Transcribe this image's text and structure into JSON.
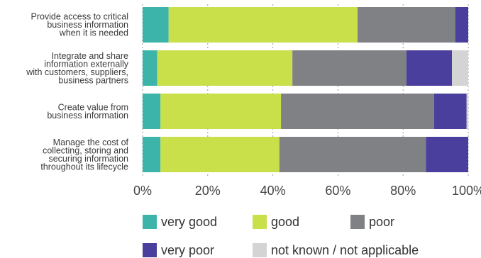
{
  "chart_data": {
    "type": "bar",
    "orientation": "horizontal",
    "stacked": true,
    "title": "",
    "xlabel": "",
    "ylabel": "",
    "xlim": [
      0,
      100
    ],
    "x_ticks": [
      "0%",
      "20%",
      "40%",
      "60%",
      "80%",
      "100%"
    ],
    "grid": true,
    "legend_position": "bottom",
    "categories": [
      [
        "Provide access to critical",
        "business information",
        "when it is needed"
      ],
      [
        "Integrate and share",
        "information externally",
        "with customers, suppliers,",
        "business partners"
      ],
      [
        "Create value from",
        "business information"
      ],
      [
        "Manage the cost of",
        "collecting, storing and",
        "securing information",
        "throughout its lifecycle"
      ]
    ],
    "series": [
      {
        "name": "very good",
        "color": "#3cb4a9",
        "values": [
          8,
          4.5,
          5.5,
          5.5
        ]
      },
      {
        "name": "good",
        "color": "#c9e04a",
        "values": [
          58,
          41.5,
          37,
          36.5
        ]
      },
      {
        "name": "poor",
        "color": "#808184",
        "values": [
          30,
          35,
          47,
          45
        ]
      },
      {
        "name": "very poor",
        "color": "#4a3f9c",
        "values": [
          4,
          14,
          10,
          13
        ]
      },
      {
        "name": "not known / not applicable",
        "color": "#d4d4d4",
        "values": [
          0,
          5,
          0.5,
          0
        ]
      }
    ]
  }
}
